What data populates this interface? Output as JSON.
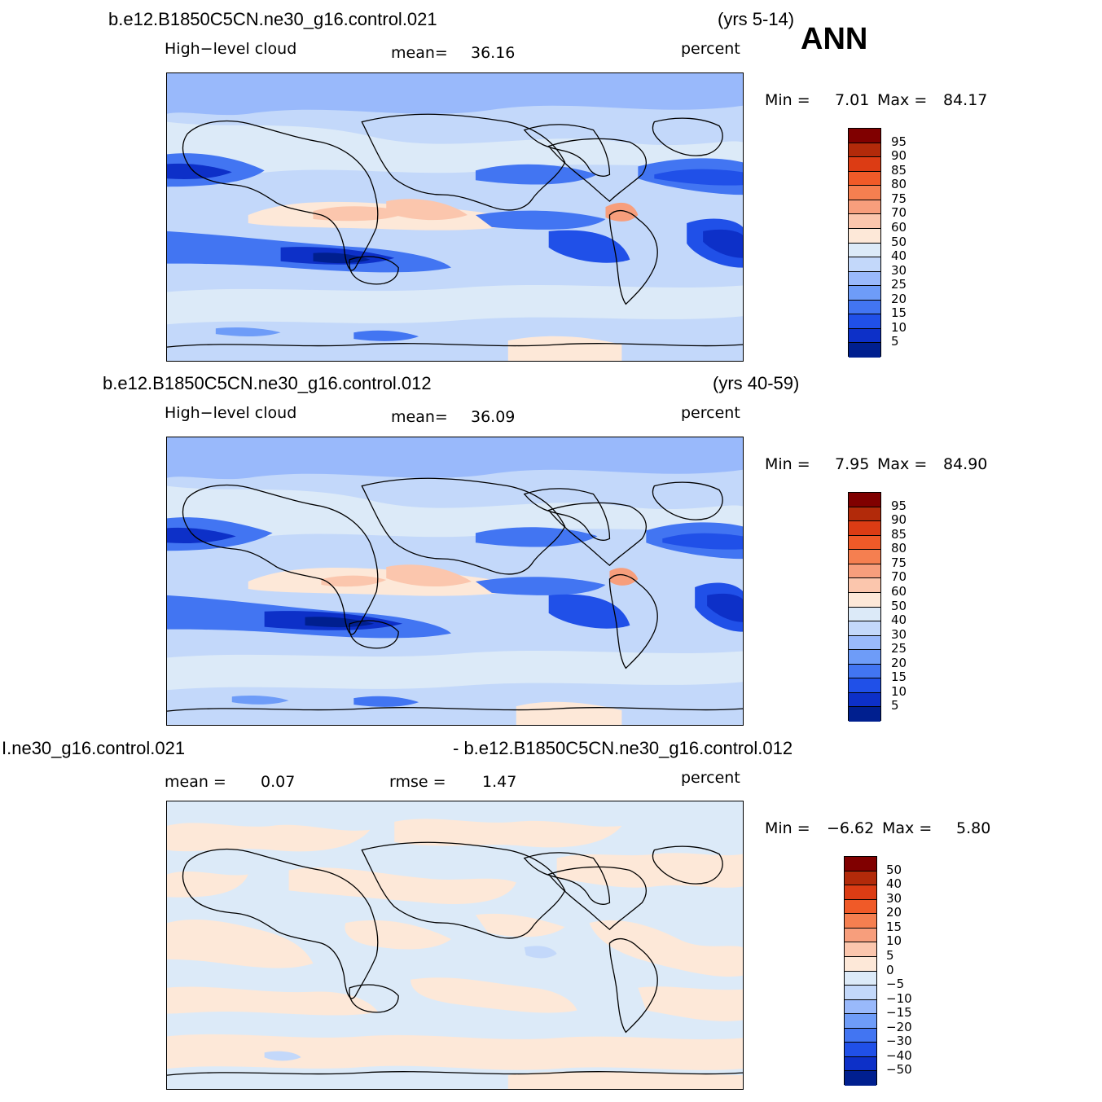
{
  "header": {
    "season": "ANN"
  },
  "panels": [
    {
      "case_title": "b.e12.B1850C5CN.ne30_g16.control.021",
      "years": "(yrs 5-14)",
      "variable": "High−level  cloud",
      "stat1": {
        "label": "mean=",
        "value": "36.16"
      },
      "units": "percent",
      "minmax": {
        "min_label": "Min  =",
        "min": "7.01",
        "max_label": "Max  =",
        "max": "84.17"
      },
      "colorbar": {
        "ticks": [
          "95",
          "90",
          "85",
          "80",
          "75",
          "70",
          "60",
          "50",
          "40",
          "30",
          "25",
          "20",
          "15",
          "10",
          "5"
        ]
      }
    },
    {
      "case_title": "b.e12.B1850C5CN.ne30_g16.control.012",
      "years": "(yrs 40-59)",
      "variable": "High−level  cloud",
      "stat1": {
        "label": "mean=",
        "value": "36.09"
      },
      "units": "percent",
      "minmax": {
        "min_label": "Min  =",
        "min": "7.95",
        "max_label": "Max  =",
        "max": "84.90"
      },
      "colorbar": {
        "ticks": [
          "95",
          "90",
          "85",
          "80",
          "75",
          "70",
          "60",
          "50",
          "40",
          "30",
          "25",
          "20",
          "15",
          "10",
          "5"
        ]
      }
    },
    {
      "case_title_left": "І.ne30_g16.control.021",
      "case_title_right": "- b.e12.B1850C5CN.ne30_g16.control.012",
      "stat1": {
        "label": "mean  =",
        "value": "0.07"
      },
      "stat2": {
        "label": "rmse  =",
        "value": "1.47"
      },
      "units": "percent",
      "minmax": {
        "min_label": "Min  =",
        "min": "−6.62",
        "max_label": "Max  =",
        "max": "5.80"
      },
      "colorbar": {
        "ticks": [
          "50",
          "40",
          "30",
          "20",
          "15",
          "10",
          "5",
          "0",
          "−5",
          "−10",
          "−15",
          "−20",
          "−30",
          "−40",
          "−50"
        ]
      }
    }
  ],
  "colors": {
    "abs_scale": [
      "#800000",
      "#b22a0a",
      "#dc3c14",
      "#f05a28",
      "#f57f50",
      "#f79e7c",
      "#fbc6ad",
      "#fde8d8",
      "#dceaf8",
      "#c3d8fa",
      "#99b9fb",
      "#6e9cf8",
      "#4275f2",
      "#2050e8",
      "#0d30c8",
      "#001f8f"
    ],
    "diff_scale": [
      "#800000",
      "#b22a0a",
      "#dc3c14",
      "#f05a28",
      "#f57f50",
      "#f79e7c",
      "#fbc6ad",
      "#fde8d8",
      "#dceaf8",
      "#c3d8fa",
      "#99b9fb",
      "#6e9cf8",
      "#4275f2",
      "#2050e8",
      "#0d30c8",
      "#001f8f"
    ]
  }
}
